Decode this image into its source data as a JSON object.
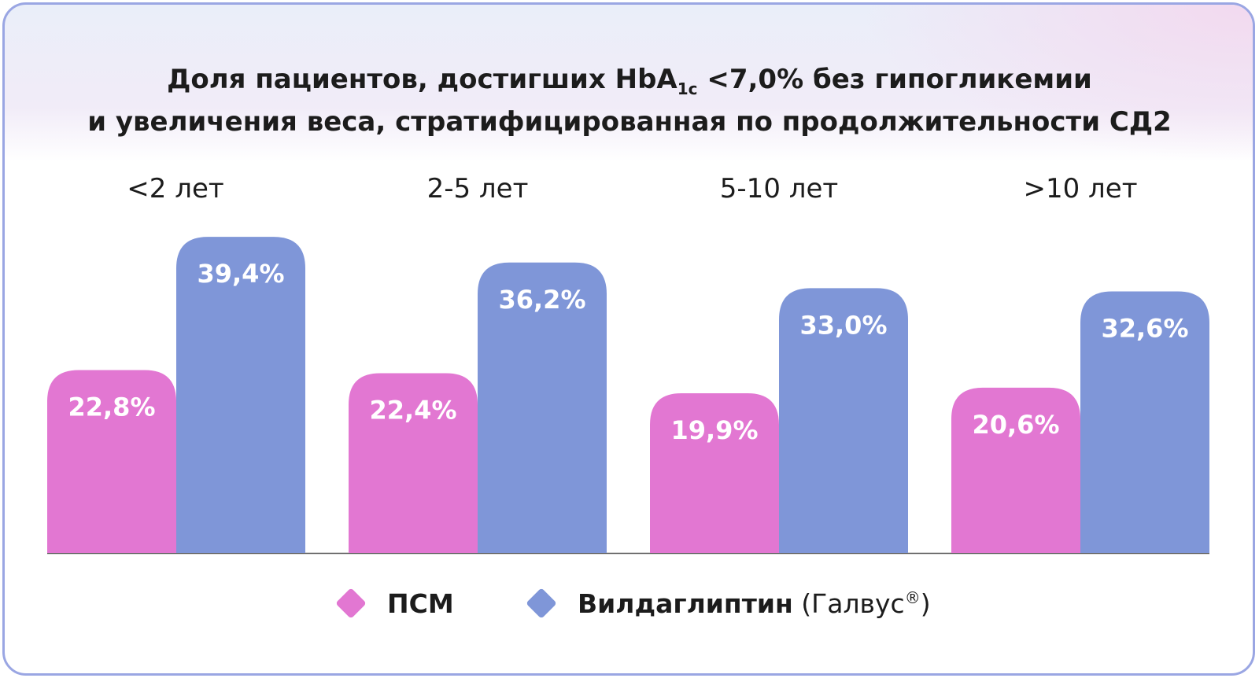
{
  "title": {
    "line1_before": "Доля пациентов, достигших HbA",
    "line1_sub": "1c",
    "line1_after": " <7,0% без гипогликемии",
    "line2": "и увеличения веса, стратифицированная по продолжительности СД2"
  },
  "chart_data": {
    "type": "bar",
    "categories": [
      "<2 лет",
      "2-5 лет",
      "5-10 лет",
      ">10 лет"
    ],
    "series": [
      {
        "name": "ПСМ",
        "color": "#e277d2",
        "values": [
          22.8,
          22.4,
          19.9,
          20.6
        ],
        "labels": [
          "22,8%",
          "22,4%",
          "19,9%",
          "20,6%"
        ]
      },
      {
        "name": "Вилдаглиптин",
        "color": "#7f96d8",
        "values": [
          39.4,
          36.2,
          33.0,
          32.6
        ],
        "labels": [
          "39,4%",
          "36,2%",
          "33,0%",
          "32,6%"
        ]
      }
    ],
    "ylim": [
      0,
      40
    ],
    "legend": "bottom"
  },
  "legend": {
    "psm": "ПСМ",
    "vild_bold": "Вилдаглиптин",
    "vild_paren_open": " (Галвус",
    "vild_reg": "®",
    "vild_paren_close": ")"
  }
}
